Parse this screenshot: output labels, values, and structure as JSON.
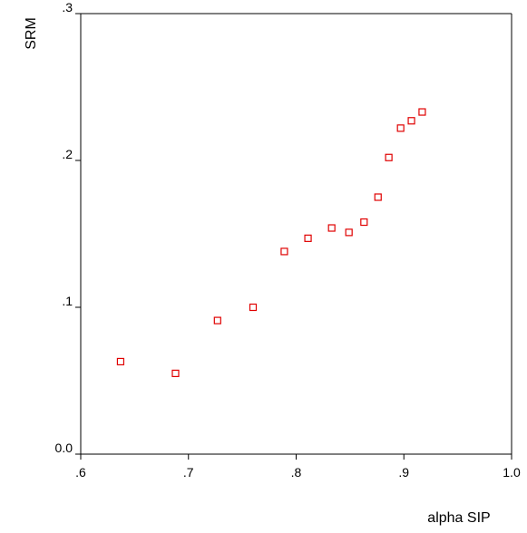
{
  "chart_data": {
    "type": "scatter",
    "xlabel": "alpha SIP",
    "ylabel": "SRM",
    "xlim": [
      0.6,
      1.0
    ],
    "ylim": [
      0.0,
      0.3
    ],
    "x_ticks": [
      0.6,
      0.7,
      0.8,
      0.9,
      1.0
    ],
    "x_tick_labels": [
      ".6",
      ".7",
      ".8",
      ".9",
      "1.0"
    ],
    "y_ticks": [
      0.0,
      0.1,
      0.2,
      0.3
    ],
    "y_tick_labels": [
      "0.0",
      ".1",
      ".2",
      ".3"
    ],
    "grid": false,
    "marker": "open-square",
    "marker_color": "#e00000",
    "points": [
      {
        "x": 0.637,
        "y": 0.063
      },
      {
        "x": 0.688,
        "y": 0.055
      },
      {
        "x": 0.727,
        "y": 0.091
      },
      {
        "x": 0.76,
        "y": 0.1
      },
      {
        "x": 0.789,
        "y": 0.138
      },
      {
        "x": 0.811,
        "y": 0.147
      },
      {
        "x": 0.833,
        "y": 0.154
      },
      {
        "x": 0.849,
        "y": 0.151
      },
      {
        "x": 0.863,
        "y": 0.158
      },
      {
        "x": 0.876,
        "y": 0.175
      },
      {
        "x": 0.886,
        "y": 0.202
      },
      {
        "x": 0.897,
        "y": 0.222
      },
      {
        "x": 0.907,
        "y": 0.227
      },
      {
        "x": 0.917,
        "y": 0.233
      }
    ]
  }
}
